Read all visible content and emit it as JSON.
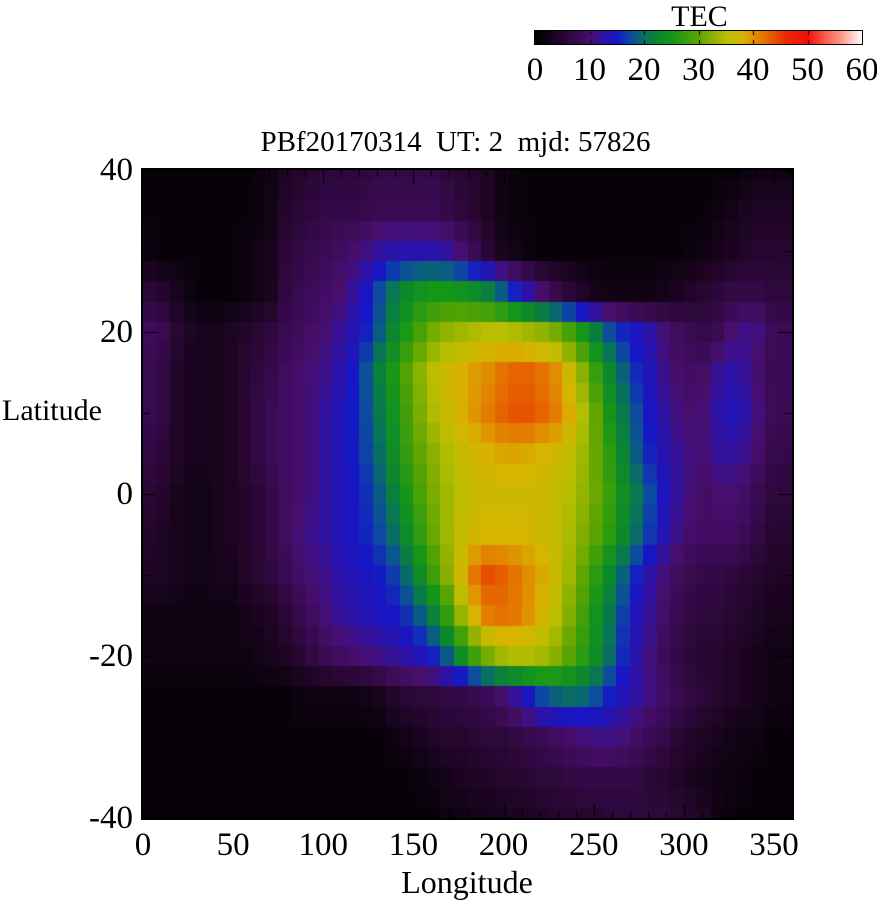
{
  "title": "PBf20170314  UT: 2  mjd: 57826",
  "colorbar": {
    "title": "TEC",
    "min": 0,
    "max": 60,
    "tick_labels": [
      "0",
      "10",
      "20",
      "30",
      "40",
      "50",
      "60"
    ],
    "tick_values": [
      0,
      10,
      20,
      30,
      40,
      50,
      60
    ]
  },
  "axes": {
    "xlabel": "Longitude",
    "ylabel": "Latitude",
    "xlim": [
      0,
      360
    ],
    "ylim": [
      -40,
      40
    ],
    "x_tick_values": [
      0,
      50,
      100,
      150,
      200,
      250,
      300,
      350
    ],
    "x_tick_labels": [
      "0",
      "50",
      "100",
      "150",
      "200",
      "250",
      "300",
      "350"
    ],
    "y_tick_values": [
      40,
      20,
      0,
      -20,
      -40
    ],
    "y_tick_labels": [
      "40",
      "20",
      "0",
      "-20",
      "-40"
    ],
    "x_minor_step": 10,
    "y_minor_step": 10,
    "tick_color": "#000000",
    "frame_color": "#000000"
  },
  "chart_data": {
    "type": "heatmap",
    "title": "PBf20170314  UT: 2  mjd: 57826",
    "value_name": "TEC",
    "xlabel": "Longitude",
    "ylabel": "Latitude",
    "xlim": [
      0,
      360
    ],
    "ylim": [
      -40,
      40
    ],
    "vlim": [
      0,
      60
    ],
    "lon_grid_step": 10,
    "lat_grid_step": 5,
    "lons": [
      0,
      10,
      20,
      30,
      40,
      50,
      60,
      70,
      80,
      90,
      100,
      110,
      120,
      130,
      140,
      150,
      160,
      170,
      180,
      190,
      200,
      210,
      220,
      230,
      240,
      250,
      260,
      270,
      280,
      290,
      300,
      310,
      320,
      330,
      340,
      350
    ],
    "lats": [
      40,
      35,
      30,
      25,
      20,
      15,
      10,
      5,
      0,
      -5,
      -10,
      -15,
      -20,
      -25,
      -30,
      -35,
      -40
    ],
    "values": [
      [
        1,
        1,
        1,
        1,
        1,
        1,
        1,
        2,
        4,
        5,
        6,
        6,
        6,
        7,
        7,
        7,
        7,
        6,
        5,
        4,
        2,
        1,
        1,
        1,
        1,
        1,
        1,
        1,
        1,
        1,
        1,
        1,
        1,
        1,
        2,
        2
      ],
      [
        1,
        1,
        1,
        1,
        1,
        1,
        1,
        2,
        5,
        6,
        7,
        7,
        7,
        8,
        8,
        8,
        8,
        7,
        6,
        4,
        2,
        1,
        1,
        1,
        1,
        1,
        1,
        1,
        1,
        1,
        1,
        1,
        2,
        3,
        4,
        4
      ],
      [
        2,
        1,
        1,
        1,
        1,
        1,
        2,
        3,
        6,
        7,
        8,
        9,
        10,
        12,
        13,
        13,
        13,
        12,
        9,
        6,
        3,
        2,
        1,
        1,
        1,
        1,
        1,
        1,
        1,
        1,
        1,
        2,
        3,
        4,
        5,
        5
      ],
      [
        6,
        5,
        3,
        1,
        1,
        1,
        2,
        3,
        7,
        8,
        9,
        10,
        13,
        17,
        21,
        24,
        25,
        25,
        24,
        22,
        18,
        14,
        10,
        7,
        5,
        3,
        2,
        2,
        2,
        3,
        4,
        5,
        6,
        7,
        7,
        6
      ],
      [
        9,
        8,
        5,
        3,
        3,
        4,
        5,
        6,
        8,
        9,
        10,
        12,
        14,
        18,
        23,
        27,
        31,
        33,
        34,
        35,
        35,
        34,
        33,
        31,
        27,
        22,
        17,
        15,
        13,
        10,
        8,
        7,
        8,
        11,
        11,
        8
      ],
      [
        8,
        7,
        4,
        3,
        3,
        4,
        6,
        7,
        9,
        10,
        11,
        13,
        16,
        21,
        26,
        31,
        35,
        37,
        39,
        40,
        42,
        43,
        42,
        40,
        35,
        28,
        22,
        17,
        14,
        11,
        9,
        9,
        12,
        13,
        10,
        8
      ],
      [
        8,
        7,
        4,
        3,
        3,
        4,
        6,
        8,
        9,
        10,
        12,
        14,
        16,
        20,
        25,
        30,
        34,
        37,
        39,
        41,
        43,
        44,
        43,
        41,
        37,
        31,
        24,
        19,
        15,
        12,
        10,
        10,
        13,
        14,
        11,
        8
      ],
      [
        7,
        6,
        4,
        3,
        3,
        4,
        6,
        8,
        9,
        10,
        12,
        14,
        16,
        19,
        24,
        29,
        32,
        35,
        37,
        38,
        39,
        39,
        38,
        37,
        35,
        31,
        26,
        20,
        16,
        13,
        11,
        10,
        12,
        12,
        10,
        7
      ],
      [
        6,
        5,
        3,
        2,
        3,
        4,
        5,
        7,
        9,
        10,
        12,
        14,
        15,
        18,
        22,
        27,
        31,
        34,
        36,
        37,
        37,
        37,
        37,
        36,
        34,
        31,
        27,
        22,
        18,
        14,
        11,
        9,
        10,
        10,
        8,
        6
      ],
      [
        5,
        4,
        3,
        2,
        3,
        4,
        5,
        7,
        9,
        11,
        12,
        14,
        15,
        17,
        20,
        25,
        30,
        34,
        37,
        38,
        38,
        38,
        37,
        36,
        33,
        30,
        26,
        21,
        17,
        13,
        10,
        9,
        9,
        9,
        7,
        5
      ],
      [
        4,
        4,
        3,
        2,
        3,
        3,
        5,
        6,
        8,
        10,
        11,
        13,
        14,
        15,
        17,
        21,
        27,
        33,
        40,
        44,
        43,
        41,
        39,
        36,
        32,
        27,
        22,
        17,
        13,
        10,
        8,
        7,
        7,
        6,
        5,
        4
      ],
      [
        2,
        2,
        2,
        2,
        2,
        2,
        3,
        4,
        6,
        8,
        10,
        12,
        13,
        14,
        15,
        17,
        21,
        28,
        36,
        41,
        42,
        41,
        38,
        35,
        30,
        25,
        20,
        15,
        12,
        9,
        7,
        6,
        6,
        5,
        4,
        3
      ],
      [
        2,
        2,
        2,
        2,
        2,
        2,
        2,
        3,
        4,
        6,
        8,
        9,
        10,
        11,
        12,
        13,
        15,
        19,
        26,
        31,
        34,
        35,
        34,
        32,
        28,
        24,
        19,
        14,
        11,
        8,
        6,
        5,
        5,
        4,
        3,
        2
      ],
      [
        1,
        1,
        1,
        1,
        1,
        1,
        1,
        1,
        1,
        2,
        2,
        2,
        2,
        3,
        5,
        6,
        6,
        7,
        7,
        8,
        10,
        13,
        17,
        19,
        20,
        18,
        15,
        13,
        11,
        9,
        7,
        6,
        5,
        4,
        3,
        2
      ],
      [
        1,
        1,
        1,
        1,
        1,
        1,
        1,
        1,
        1,
        1,
        1,
        1,
        1,
        1,
        2,
        3,
        4,
        5,
        5,
        6,
        6,
        7,
        8,
        9,
        10,
        11,
        11,
        10,
        8,
        7,
        5,
        4,
        3,
        2,
        2,
        1
      ],
      [
        1,
        1,
        1,
        1,
        1,
        1,
        1,
        1,
        1,
        1,
        1,
        1,
        1,
        1,
        1,
        1,
        2,
        3,
        4,
        4,
        5,
        5,
        6,
        6,
        7,
        7,
        7,
        7,
        6,
        5,
        4,
        3,
        2,
        2,
        1,
        1
      ],
      [
        1,
        1,
        1,
        1,
        1,
        1,
        1,
        1,
        1,
        1,
        1,
        1,
        1,
        1,
        1,
        1,
        1,
        2,
        2,
        3,
        3,
        4,
        4,
        5,
        5,
        5,
        6,
        6,
        6,
        6,
        5,
        4,
        2,
        1,
        1,
        1
      ]
    ],
    "colormap_stops": [
      [
        0,
        [
          0,
          0,
          0
        ]
      ],
      [
        5,
        [
          38,
          6,
          46
        ]
      ],
      [
        10,
        [
          72,
          14,
          110
        ]
      ],
      [
        12.5,
        [
          45,
          18,
          165
        ]
      ],
      [
        15,
        [
          22,
          22,
          200
        ]
      ],
      [
        17.5,
        [
          12,
          75,
          160
        ]
      ],
      [
        20,
        [
          8,
          115,
          90
        ]
      ],
      [
        22.5,
        [
          12,
          135,
          45
        ]
      ],
      [
        25,
        [
          20,
          150,
          25
        ]
      ],
      [
        30,
        [
          95,
          165,
          0
        ]
      ],
      [
        35,
        [
          185,
          190,
          0
        ]
      ],
      [
        38,
        [
          215,
          180,
          0
        ]
      ],
      [
        40,
        [
          225,
          145,
          0
        ]
      ],
      [
        43,
        [
          230,
          95,
          0
        ]
      ],
      [
        46,
        [
          235,
          40,
          5
        ]
      ],
      [
        50,
        [
          245,
          15,
          10
        ]
      ],
      [
        53,
        [
          250,
          90,
          70
        ]
      ],
      [
        56,
        [
          252,
          150,
          135
        ]
      ],
      [
        60,
        [
          255,
          255,
          255
        ]
      ]
    ],
    "grid": false,
    "legend_position": "top colorbar"
  }
}
